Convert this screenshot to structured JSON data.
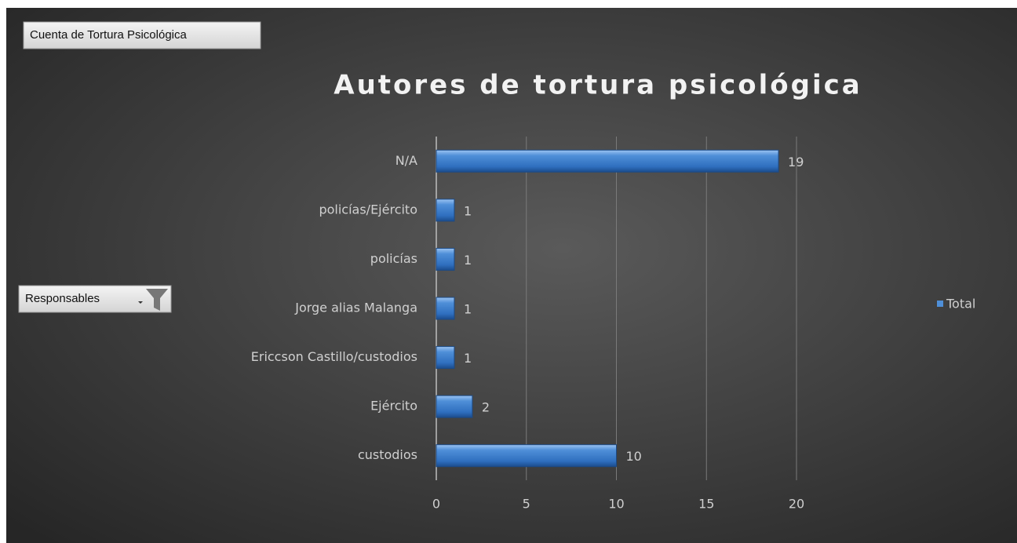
{
  "field_buttons": {
    "value_field": "Cuenta de Tortura Psicológica",
    "filter_field": "Responsables"
  },
  "chart_data": {
    "type": "bar",
    "orientation": "horizontal",
    "title": "Autores de tortura psicológica",
    "categories": [
      "N/A",
      "policías/Ejército",
      "policías",
      "Jorge alias Malanga",
      "Ericcson Castillo/custodios",
      "Ejército",
      "custodios"
    ],
    "series": [
      {
        "name": "Total",
        "color": "#4f8fd8",
        "values": [
          19,
          1,
          1,
          1,
          1,
          2,
          10
        ]
      }
    ],
    "xlim": [
      0,
      20
    ],
    "xticks": [
      0,
      5,
      10,
      15,
      20
    ],
    "grid": true,
    "legend": "right"
  }
}
